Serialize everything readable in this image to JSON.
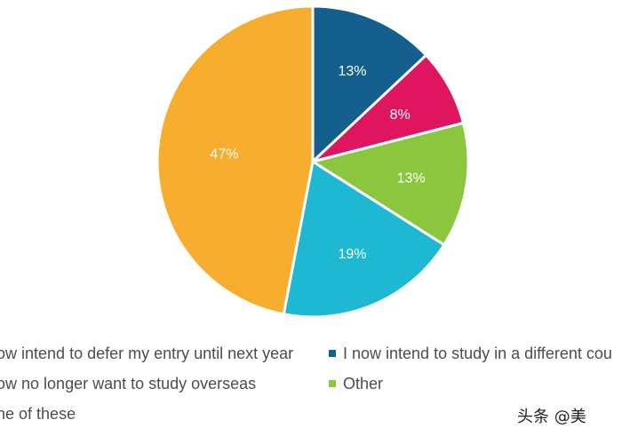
{
  "chart_data": {
    "type": "pie",
    "slices": [
      {
        "label": "I now intend to study in a different cou",
        "value": 13,
        "data_label": "13%",
        "color": "#155f8e"
      },
      {
        "label": "I now no longer want to study overseas",
        "value": 8,
        "data_label": "8%",
        "color": "#e0155f"
      },
      {
        "label": "Other",
        "value": 13,
        "data_label": "13%",
        "color": "#8cc63f"
      },
      {
        "label": "None of these",
        "value": 19,
        "data_label": "19%",
        "color": "#1fb8d3"
      },
      {
        "label": "I now intend to defer my entry until next year",
        "value": 47,
        "data_label": "47%",
        "color": "#f7ad2e"
      }
    ],
    "start_angle_deg": 0,
    "direction": "clockwise",
    "legend": {
      "placement": "bottom",
      "items": [
        {
          "text": "now intend to defer my entry until next year",
          "color": "#f7ad2e"
        },
        {
          "text": "I now intend to study in a different cou",
          "color": "#155f8e"
        },
        {
          "text": "now no longer want to study overseas",
          "color": "#e0155f"
        },
        {
          "text": "Other",
          "color": "#8cc63f"
        },
        {
          "text": "one of these",
          "color": "#1fb8d3"
        }
      ]
    }
  },
  "watermark": "头条 @美"
}
